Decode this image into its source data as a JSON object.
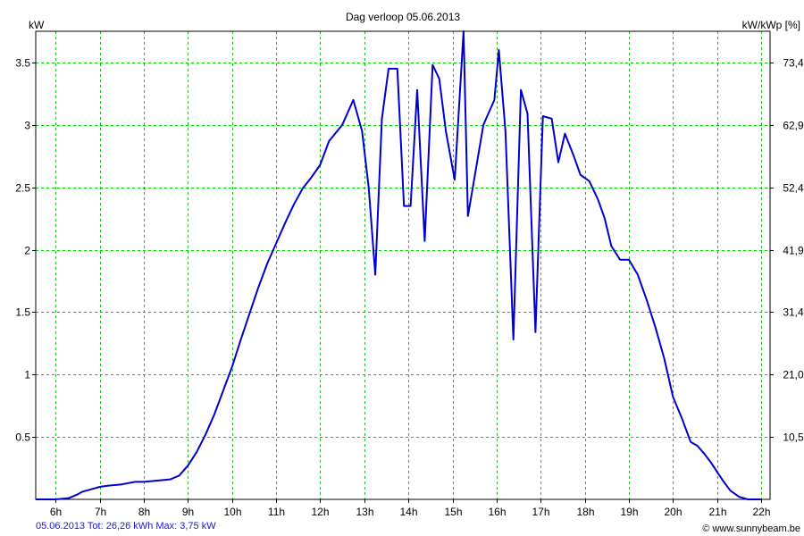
{
  "chart_data": {
    "type": "line",
    "title": "Dag  verloop 05.06.2013",
    "ylabel_left": "kW",
    "ylabel_right": "kW/kWp [%]",
    "x_tick_labels": [
      "6h",
      "7h",
      "8h",
      "9h",
      "10h",
      "11h",
      "12h",
      "13h",
      "14h",
      "15h",
      "16h",
      "17h",
      "18h",
      "19h",
      "20h",
      "21h",
      "22h"
    ],
    "x_ticks_hours": [
      6,
      7,
      8,
      9,
      10,
      11,
      12,
      13,
      14,
      15,
      16,
      17,
      18,
      19,
      20,
      21,
      22
    ],
    "xlim": [
      5.55,
      22.2
    ],
    "ylim": [
      0,
      3.75
    ],
    "y_ticks_left": [
      0.5,
      1,
      1.5,
      2,
      2.5,
      3,
      3.5
    ],
    "y_tick_labels_left": [
      "0.5",
      "1",
      "1.5",
      "2",
      "2.5",
      "3",
      "3.5"
    ],
    "y_tick_labels_right": [
      "10,5",
      "21,0",
      "31,4",
      "41,9",
      "52,4",
      "62,9",
      "73,4"
    ],
    "grid": true,
    "line_color": "#0000cc",
    "grid_color": "#00cc00",
    "series": [
      {
        "x": [
          5.55,
          6.0,
          6.3,
          6.5,
          6.6,
          6.8,
          7.0,
          7.2,
          7.5,
          7.8,
          8.0,
          8.3,
          8.6,
          8.8,
          9.0,
          9.2,
          9.4,
          9.6,
          9.8,
          10.0,
          10.2,
          10.4,
          10.6,
          10.8,
          11.0,
          11.2,
          11.4,
          11.6,
          11.8,
          12.0,
          12.2,
          12.5,
          12.75,
          12.95,
          13.1,
          13.25,
          13.4,
          13.55,
          13.75,
          13.9,
          14.05,
          14.2,
          14.37,
          14.55,
          14.7,
          14.85,
          15.05,
          15.25,
          15.35,
          15.5,
          15.7,
          15.95,
          16.05,
          16.2,
          16.38,
          16.55,
          16.7,
          16.88,
          17.05,
          17.25,
          17.4,
          17.55,
          17.75,
          17.9,
          18.1,
          18.3,
          18.45,
          18.6,
          18.8,
          19.0,
          19.2,
          19.4,
          19.6,
          19.8,
          20.0,
          20.2,
          20.4,
          20.55,
          20.7,
          20.85,
          21.0,
          21.15,
          21.3,
          21.5,
          21.7,
          22.0
        ],
        "y": [
          0.0,
          0.0,
          0.01,
          0.04,
          0.06,
          0.08,
          0.1,
          0.11,
          0.12,
          0.14,
          0.14,
          0.15,
          0.16,
          0.19,
          0.27,
          0.38,
          0.52,
          0.68,
          0.87,
          1.06,
          1.28,
          1.49,
          1.7,
          1.89,
          2.05,
          2.21,
          2.36,
          2.49,
          2.58,
          2.68,
          2.87,
          3.0,
          3.2,
          2.95,
          2.5,
          1.8,
          3.05,
          3.45,
          3.45,
          2.35,
          2.35,
          3.28,
          2.07,
          3.48,
          3.37,
          2.95,
          2.56,
          3.75,
          2.27,
          2.58,
          3.0,
          3.2,
          3.6,
          2.95,
          1.28,
          3.28,
          3.09,
          1.34,
          3.07,
          3.05,
          2.7,
          2.93,
          2.75,
          2.6,
          2.55,
          2.4,
          2.25,
          2.03,
          1.92,
          1.92,
          1.8,
          1.6,
          1.38,
          1.13,
          0.82,
          0.65,
          0.46,
          0.43,
          0.37,
          0.3,
          0.22,
          0.14,
          0.07,
          0.02,
          0.0,
          0.0
        ]
      }
    ]
  },
  "footer": {
    "summary": "05.06.2013 Tot: 26,26 kWh Max: 3,75 kW",
    "credit": "© www.sunnybeam.be"
  }
}
